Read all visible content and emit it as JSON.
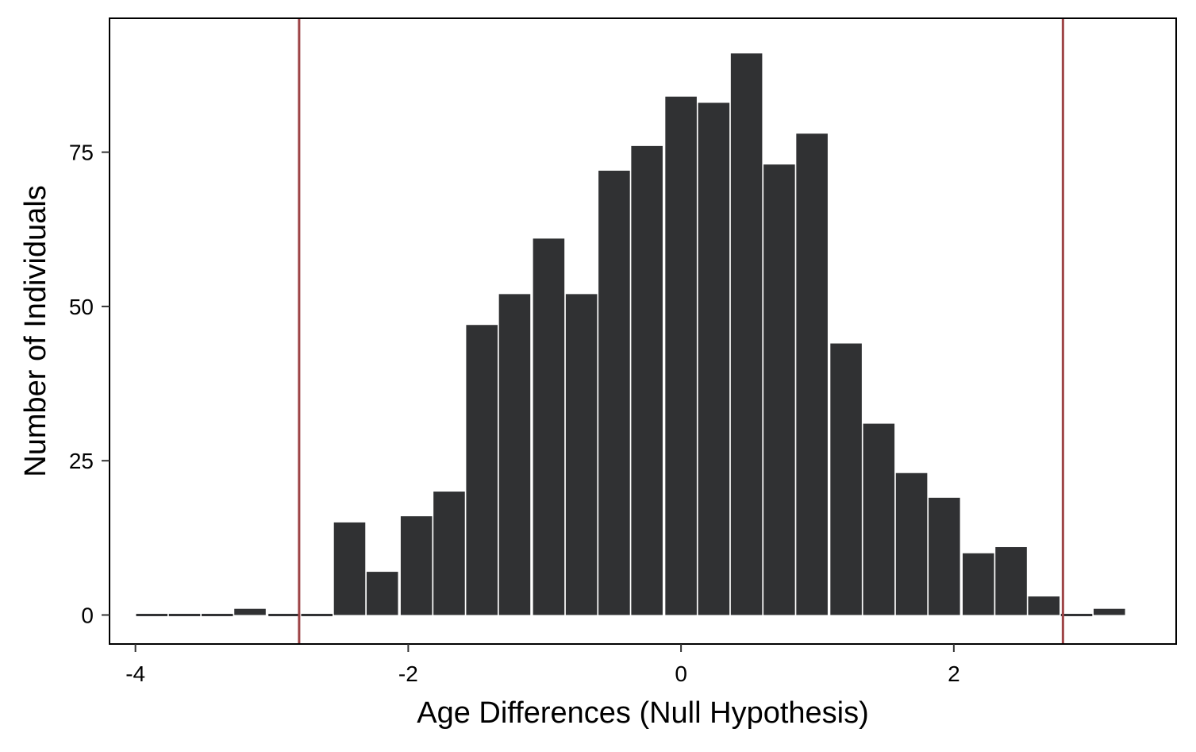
{
  "chart_data": {
    "type": "bar",
    "title": "",
    "xlabel": "Age Differences (Null Hypothesis)",
    "ylabel": "Number of Individuals",
    "xlim": [
      -4.19,
      3.63
    ],
    "ylim": [
      -4.7,
      96.7
    ],
    "x_ticks": [
      {
        "value": -4,
        "label": "-4"
      },
      {
        "value": -2,
        "label": "-2"
      },
      {
        "value": 0,
        "label": "0"
      },
      {
        "value": 2,
        "label": "2"
      }
    ],
    "y_ticks": [
      {
        "value": 0,
        "label": "0"
      },
      {
        "value": 25,
        "label": "25"
      },
      {
        "value": 50,
        "label": "50"
      },
      {
        "value": 75,
        "label": "75"
      }
    ],
    "bin_width": 0.2418,
    "x": [
      -3.88,
      -3.64,
      -3.4,
      -3.16,
      -2.91,
      -2.67,
      -2.43,
      -2.19,
      -1.94,
      -1.7,
      -1.46,
      -1.22,
      -0.97,
      -0.73,
      -0.49,
      -0.25,
      0.0,
      0.24,
      0.48,
      0.72,
      0.96,
      1.21,
      1.45,
      1.69,
      1.93,
      2.18,
      2.42,
      2.66,
      2.9,
      3.14
    ],
    "values": [
      0,
      0,
      0,
      1,
      0,
      0,
      15,
      7,
      16,
      20,
      47,
      52,
      61,
      52,
      72,
      76,
      84,
      83,
      91,
      73,
      78,
      44,
      31,
      23,
      19,
      10,
      11,
      3,
      0,
      1
    ],
    "reference_lines": [
      {
        "axis": "x",
        "value": -2.8
      },
      {
        "axis": "x",
        "value": 2.8
      }
    ],
    "grid": false,
    "legend": "none",
    "colors": {
      "bar": "#303133",
      "reference_line": "#9e4446",
      "frame": "#000000",
      "background": "#ffffff"
    }
  }
}
